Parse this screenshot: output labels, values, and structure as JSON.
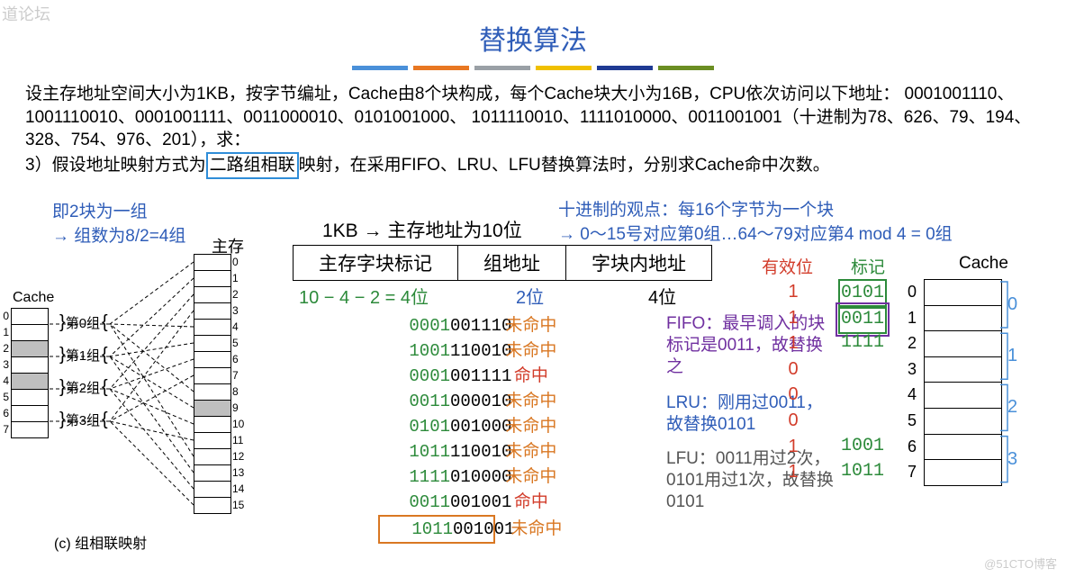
{
  "watermark_tl": "道论坛",
  "watermark_br": "@51CTO博客",
  "title": "替换算法",
  "underline_colors": [
    "#4a90d9",
    "#e87722",
    "#9aa0a6",
    "#f0c000",
    "#1f3a93",
    "#6b8e23"
  ],
  "problem_pre": "设主存地址空间大小为1KB，按字节编址，Cache由8个块构成，每个Cache块大小为16B，CPU依次访问以下地址：  0001001110、1001110010、0001001111、0011000010、0101001000、  1011110010、1111010000、0011001001（十进制为78、626、79、194、328、754、976、201），求：",
  "problem_line_pre": "3）假设地址映射方式为",
  "problem_boxed": "二路组相联",
  "problem_line_post": "映射，在采用FIFO、LRU、LFU替换算法时，分别求Cache命中次数。",
  "hint1_l1": "即2块为一组",
  "hint1_l2": "→ 组数为8/2=4组",
  "hint2_l1": "十进制的观点：每16个字节为一个块",
  "hint2_l2": "→ 0～15号对应第0组…64～79对应第4 mod 4 = 0组",
  "addr_header": "1KB → 主存地址为10位",
  "fields": {
    "tag": "主存字块标记",
    "set": "组地址",
    "off": "字块内地址"
  },
  "field_bits": {
    "tag": "10 − 4 − 2 = 4位",
    "set": "2位",
    "off": "4位"
  },
  "main_mem_label": "主存",
  "cache_label_left": "Cache",
  "groups": [
    "第0组",
    "第1组",
    "第2组",
    "第3组"
  ],
  "diagram_caption": "(c) 组相联映射",
  "cache_left_idx": [
    "0",
    "1",
    "2",
    "3",
    "4",
    "5",
    "6",
    "7"
  ],
  "mem_idx": [
    "0",
    "1",
    "2",
    "3",
    "4",
    "5",
    "6",
    "7",
    "8",
    "9",
    "10",
    "11",
    "12",
    "13",
    "14",
    "15"
  ],
  "shaded_cache_rows": [
    2,
    4
  ],
  "shaded_mem_rows": [
    9
  ],
  "addresses": [
    {
      "tag": "0001",
      "rest": "001110",
      "hit": "未命中",
      "hitColor": "orangeText",
      "tagColor": "greenText"
    },
    {
      "tag": "1001",
      "rest": "110010",
      "hit": "未命中",
      "hitColor": "orangeText",
      "tagColor": "greenText"
    },
    {
      "tag": "0001",
      "rest": "001111",
      "hit": "命中",
      "hitColor": "redText",
      "tagColor": "greenText"
    },
    {
      "tag": "0011",
      "rest": "000010",
      "hit": "未命中",
      "hitColor": "orangeText",
      "tagColor": "greenText"
    },
    {
      "tag": "0101",
      "rest": "001000",
      "hit": "未命中",
      "hitColor": "orangeText",
      "tagColor": "greenText"
    },
    {
      "tag": "1011",
      "rest": "110010",
      "hit": "未命中",
      "hitColor": "orangeText",
      "tagColor": "greenText"
    },
    {
      "tag": "1111",
      "rest": "010000",
      "hit": "未命中",
      "hitColor": "orangeText",
      "tagColor": "greenText"
    },
    {
      "tag": "0011",
      "rest": "001001",
      "hit": "命中",
      "hitColor": "redText",
      "tagColor": "greenText"
    },
    {
      "tag": "1011",
      "rest": "001001",
      "hit": "未命中",
      "hitColor": "orangeText",
      "tagColor": "greenText",
      "boxed": true
    }
  ],
  "valid_label": "有效位",
  "tag_label": "标记",
  "cache_right_label": "Cache",
  "valid_bits": [
    "1",
    "1",
    "1",
    "0",
    "0",
    "0",
    "1",
    "1"
  ],
  "tags": [
    "0101",
    "0011",
    "1111",
    "",
    "",
    "",
    "1001",
    "1011"
  ],
  "tag_box": {
    "0": "green",
    "1": "purple"
  },
  "cache_right_idx": [
    "0",
    "1",
    "2",
    "3",
    "4",
    "5",
    "6",
    "7"
  ],
  "group_right": [
    "0",
    "1",
    "2",
    "3"
  ],
  "notes": {
    "fifo": "FIFO：最早调入的块标记是0011，故替换之",
    "lru": "LRU：刚用过0011，故替换0101",
    "lfu": "LFU：0011用过2次，0101用过1次，故替换0101"
  },
  "colors": {
    "blue": "#2f5db8",
    "green": "#2c8a3a",
    "red": "#d23c2a",
    "orange": "#d97722",
    "purple": "#7030a0",
    "gray": "#555"
  }
}
